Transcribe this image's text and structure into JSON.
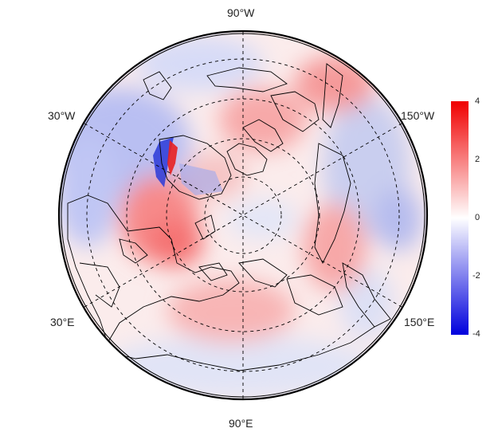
{
  "map": {
    "projection": "north polar stereographic",
    "longitude_labels": {
      "top": "90°W",
      "upper_left": "30°W",
      "upper_right": "150°W",
      "lower_left": "30°E",
      "lower_right": "150°E",
      "bottom": "90°E"
    },
    "graticule_style": "dashed",
    "field": "anomaly"
  },
  "colorbar": {
    "ticks": [
      "4",
      "2",
      "0",
      "-2",
      "-4"
    ],
    "min": -4,
    "max": 4,
    "colors": {
      "high": "#f00000",
      "mid": "#ffffff",
      "low": "#0000dd"
    }
  }
}
